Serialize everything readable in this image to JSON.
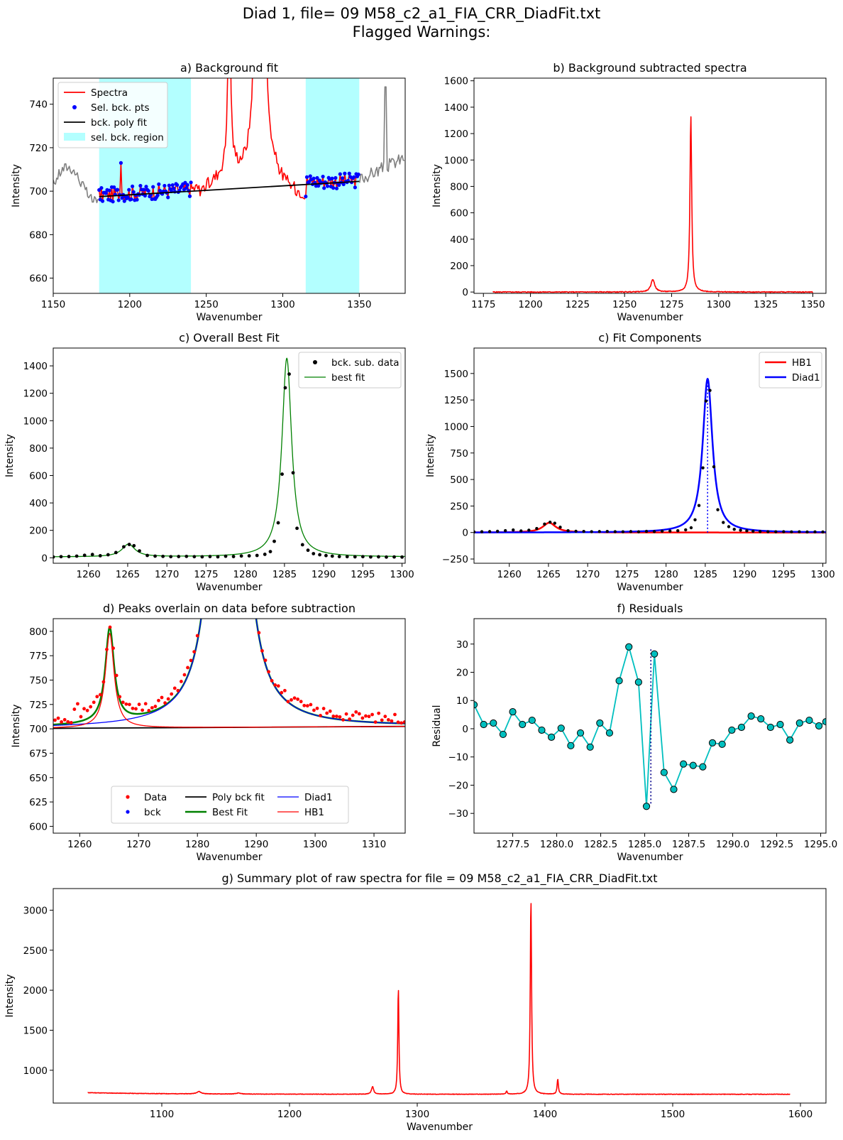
{
  "figure": {
    "title_line1": "Diad 1, file= 09 M58_c2_a1_FIA_CRR_DiadFit.txt",
    "title_line2": "Flagged Warnings:"
  },
  "colors": {
    "spectra": "#ff0000",
    "raw_outside": "#808080",
    "sel_pts": "#0000ff",
    "poly": "#000000",
    "region": "#b3ffff",
    "best_fit": "#008000",
    "diad1": "#0000ff",
    "hb1": "#ff0000",
    "residual_line": "#00bfbf",
    "residual_marker": "#00bfbf",
    "peak_marker_line": "#00008b"
  },
  "chart_data": [
    {
      "id": "a",
      "type": "line",
      "title": "a) Background fit",
      "xlabel": "Wavenumber",
      "ylabel": "Intensity",
      "xlim": [
        1150,
        1380
      ],
      "ylim": [
        653,
        752
      ],
      "xticks": [
        1150,
        1200,
        1250,
        1300,
        1350
      ],
      "yticks": [
        660,
        680,
        700,
        720,
        740
      ],
      "grid": false,
      "legend_position": "upper-left",
      "legend": [
        "Spectra",
        "Sel. bck. pts",
        "bck. poly fit",
        "sel. bck. region"
      ],
      "background_regions": [
        [
          1180,
          1240
        ],
        [
          1315,
          1350
        ]
      ],
      "poly_fit": {
        "x": [
          1180,
          1350
        ],
        "y": [
          697.5,
          704.5
        ]
      },
      "spike_x": 1194,
      "spike_y": 713,
      "peaks_offscale": [
        {
          "x": 1265,
          "height": 800
        },
        {
          "x": 1285,
          "height": 2040
        }
      ],
      "right_edge_spike": {
        "x": 1367,
        "y": 748
      }
    },
    {
      "id": "b",
      "type": "line",
      "title": "b) Background subtracted spectra",
      "xlabel": "Wavenumber",
      "ylabel": "Intensity",
      "xlim": [
        1170,
        1357
      ],
      "ylim": [
        -10,
        1620
      ],
      "xticks": [
        1175,
        1200,
        1225,
        1250,
        1275,
        1300,
        1325,
        1350
      ],
      "yticks": [
        0,
        200,
        400,
        600,
        800,
        1000,
        1200,
        1400,
        1600
      ],
      "grid": false,
      "x_range": [
        1180,
        1350
      ],
      "peaks": [
        {
          "center": 1285.2,
          "amplitude": 1340,
          "hwhm": 0.55
        },
        {
          "center": 1265.0,
          "amplitude": 95,
          "hwhm": 1.2
        }
      ]
    },
    {
      "id": "c1",
      "type": "line",
      "title": "c) Overall Best Fit",
      "xlabel": "Wavenumber",
      "ylabel": "Intensity",
      "xlim": [
        1255.5,
        1300.4
      ],
      "ylim": [
        -40,
        1530
      ],
      "xticks": [
        1260,
        1265,
        1270,
        1275,
        1280,
        1285,
        1290,
        1295,
        1300
      ],
      "yticks": [
        0,
        200,
        400,
        600,
        800,
        1000,
        1200,
        1400
      ],
      "grid": false,
      "legend_position": "upper-right",
      "legend": [
        "bck. sub. data",
        "best fit"
      ],
      "fit_peaks": [
        {
          "name": "Diad1",
          "center": 1285.3,
          "amplitude": 1450,
          "hwhm": 0.75
        },
        {
          "name": "HB1",
          "center": 1265.1,
          "amplitude": 92,
          "hwhm": 1.0
        }
      ],
      "data_points": [
        [
          1255.5,
          6
        ],
        [
          1256.5,
          8
        ],
        [
          1257.5,
          9
        ],
        [
          1258.5,
          12
        ],
        [
          1259.5,
          18
        ],
        [
          1260.5,
          24
        ],
        [
          1261.5,
          15
        ],
        [
          1262.5,
          22
        ],
        [
          1263.5,
          38
        ],
        [
          1264.5,
          80
        ],
        [
          1265.2,
          97
        ],
        [
          1265.8,
          88
        ],
        [
          1266.5,
          50
        ],
        [
          1267.5,
          17
        ],
        [
          1268.5,
          12
        ],
        [
          1269.5,
          10
        ],
        [
          1270.5,
          8
        ],
        [
          1271.5,
          9
        ],
        [
          1272.5,
          10
        ],
        [
          1273.5,
          8
        ],
        [
          1274.5,
          7
        ],
        [
          1275.5,
          9
        ],
        [
          1276.5,
          7
        ],
        [
          1277.5,
          11
        ],
        [
          1278.5,
          9
        ],
        [
          1279.5,
          13
        ],
        [
          1280.5,
          14
        ],
        [
          1281.5,
          17
        ],
        [
          1282.5,
          25
        ],
        [
          1283.2,
          45
        ],
        [
          1283.7,
          120
        ],
        [
          1284.2,
          255
        ],
        [
          1284.7,
          610
        ],
        [
          1285.1,
          1240
        ],
        [
          1285.6,
          1340
        ],
        [
          1286.1,
          620
        ],
        [
          1286.6,
          215
        ],
        [
          1287.3,
          95
        ],
        [
          1288.0,
          55
        ],
        [
          1288.7,
          30
        ],
        [
          1289.5,
          22
        ],
        [
          1290.3,
          16
        ],
        [
          1291.1,
          12
        ],
        [
          1292.0,
          9
        ],
        [
          1293.0,
          8
        ],
        [
          1294.0,
          7
        ],
        [
          1295.0,
          8
        ],
        [
          1296.0,
          6
        ],
        [
          1297.0,
          7
        ],
        [
          1298.0,
          5
        ],
        [
          1299.0,
          6
        ],
        [
          1300.0,
          5
        ]
      ]
    },
    {
      "id": "c2",
      "type": "line",
      "title": "c) Fit Components",
      "xlabel": "Wavenumber",
      "ylabel": "Intensity",
      "xlim": [
        1255.5,
        1300.4
      ],
      "ylim": [
        -290,
        1740
      ],
      "xticks": [
        1260,
        1265,
        1270,
        1275,
        1280,
        1285,
        1290,
        1295,
        1300
      ],
      "yticks": [
        -250,
        0,
        250,
        500,
        750,
        1000,
        1250,
        1500
      ],
      "grid": false,
      "legend_position": "upper-right",
      "legend": [
        "HB1",
        "Diad1"
      ],
      "peak_line_x": 1285.3
    },
    {
      "id": "d",
      "type": "line",
      "title": "d) Peaks overlain on data before subtraction",
      "xlabel": "Wavenumber",
      "ylabel": "Intensity",
      "xlim": [
        1255.5,
        1315.3
      ],
      "ylim": [
        593,
        813
      ],
      "xticks": [
        1260,
        1270,
        1280,
        1290,
        1300,
        1310
      ],
      "yticks": [
        600,
        625,
        650,
        675,
        700,
        725,
        750,
        775,
        800
      ],
      "grid": false,
      "legend_position": "lower-center",
      "legend": [
        "Data",
        "bck",
        "Poly bck fit",
        "Best Fit",
        "Diad1",
        "HB1"
      ],
      "baseline": {
        "x": [
          1255.5,
          1315.3
        ],
        "y": [
          700.5,
          702.5
        ]
      }
    },
    {
      "id": "f",
      "type": "line",
      "title": "f) Residuals",
      "xlabel": "",
      "ylabel": "Residual",
      "xlim": [
        1275.3,
        1295.3
      ],
      "ylim": [
        -37,
        39
      ],
      "xticks": [
        1277.5,
        1280.0,
        1282.5,
        1285.0,
        1287.5,
        1290.0,
        1292.5,
        1295.0
      ],
      "xtick_labels": [
        "1277.5",
        "1280.0",
        "1282.5",
        "1285.0",
        "1287.5",
        "1290.0",
        "1292.5",
        "1295.0"
      ],
      "yticks": [
        -30,
        -20,
        -10,
        0,
        10,
        20,
        30
      ],
      "grid": false,
      "xlabel_printed": "Wavenumber",
      "peak_line_x": 1285.35,
      "x": [
        1275.3,
        1275.85,
        1276.4,
        1276.95,
        1277.5,
        1278.05,
        1278.6,
        1279.15,
        1279.7,
        1280.25,
        1280.8,
        1281.35,
        1281.9,
        1282.45,
        1283.0,
        1283.55,
        1284.1,
        1284.65,
        1285.1,
        1285.55,
        1286.1,
        1286.65,
        1287.2,
        1287.75,
        1288.3,
        1288.85,
        1289.4,
        1289.95,
        1290.5,
        1291.05,
        1291.6,
        1292.15,
        1292.7,
        1293.25,
        1293.8,
        1294.35,
        1294.9,
        1295.3
      ],
      "y": [
        8.5,
        1.5,
        2,
        -2,
        6,
        1.5,
        3,
        -0.5,
        -3,
        0.2,
        -6,
        -1.5,
        -6.5,
        2,
        -1.5,
        17,
        29,
        16.5,
        -27.5,
        26.5,
        -15.5,
        -21.5,
        -12.5,
        -13,
        -13.5,
        -5,
        -5.5,
        -0.5,
        0.5,
        4.5,
        3.5,
        0.5,
        1.5,
        -4,
        2,
        3,
        1,
        2.5
      ]
    },
    {
      "id": "g",
      "type": "line",
      "title": "g) Summary plot of raw spectra for file = 09 M58_c2_a1_FIA_CRR_DiadFit.txt",
      "xlabel": "Wavenumber",
      "ylabel": "Intensity",
      "xlim": [
        1015,
        1620
      ],
      "ylim": [
        590,
        3270
      ],
      "xticks": [
        1100,
        1200,
        1300,
        1400,
        1500,
        1600
      ],
      "yticks": [
        1000,
        1500,
        2000,
        2500,
        3000
      ],
      "grid": false,
      "x_range": [
        1042,
        1592
      ],
      "baseline": 700,
      "peaks": [
        {
          "center": 1389.0,
          "amplitude": 2450,
          "hwhm": 0.6
        },
        {
          "center": 1285.2,
          "amplitude": 1340,
          "hwhm": 0.55
        },
        {
          "center": 1410.0,
          "amplitude": 190,
          "hwhm": 0.6
        },
        {
          "center": 1265.0,
          "amplitude": 95,
          "hwhm": 1.0
        },
        {
          "center": 1129.0,
          "amplitude": 30,
          "hwhm": 2.0
        },
        {
          "center": 1160.0,
          "amplitude": 12,
          "hwhm": 2.0
        },
        {
          "center": 1370.0,
          "amplitude": 40,
          "hwhm": 0.6
        }
      ]
    }
  ]
}
